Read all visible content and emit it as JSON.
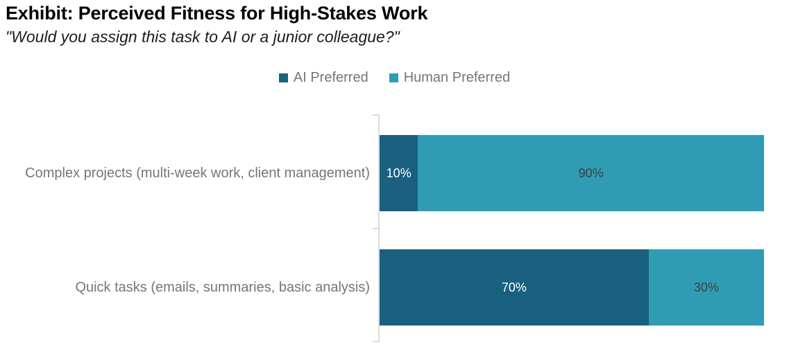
{
  "header": {
    "title": "Exhibit: Perceived Fitness for High-Stakes Work",
    "subtitle": "\"Would you assign this task to AI or a junior colleague?\""
  },
  "colors": {
    "ai_preferred": "#1a6080",
    "human_preferred": "#2f9cb4",
    "axis_line": "#dcdcdc",
    "category_label_text": "#757575",
    "legend_text": "#757575",
    "title_text": "#000000",
    "value_label_on_dark": "#ffffff",
    "value_label_on_teal": "#404040"
  },
  "chart_data": {
    "type": "bar",
    "orientation": "horizontal",
    "stacked": true,
    "unit": "%",
    "title": "Exhibit: Perceived Fitness for High-Stakes Work",
    "subtitle": "\"Would you assign this task to AI or a junior colleague?\"",
    "categories": [
      "Complex projects (multi-week work, client management)",
      "Quick tasks (emails, summaries, basic analysis)"
    ],
    "series": [
      {
        "name": "AI Preferred",
        "values": [
          10,
          70
        ],
        "color": "#1a6080",
        "label_color": "#ffffff"
      },
      {
        "name": "Human Preferred",
        "values": [
          90,
          30
        ],
        "color": "#2f9cb4",
        "label_color": "#404040"
      }
    ],
    "value_labels": [
      [
        "10%",
        "90%"
      ],
      [
        "70%",
        "30%"
      ]
    ],
    "xlim": [
      0,
      100
    ],
    "legend_position": "top-center",
    "grid": false
  }
}
